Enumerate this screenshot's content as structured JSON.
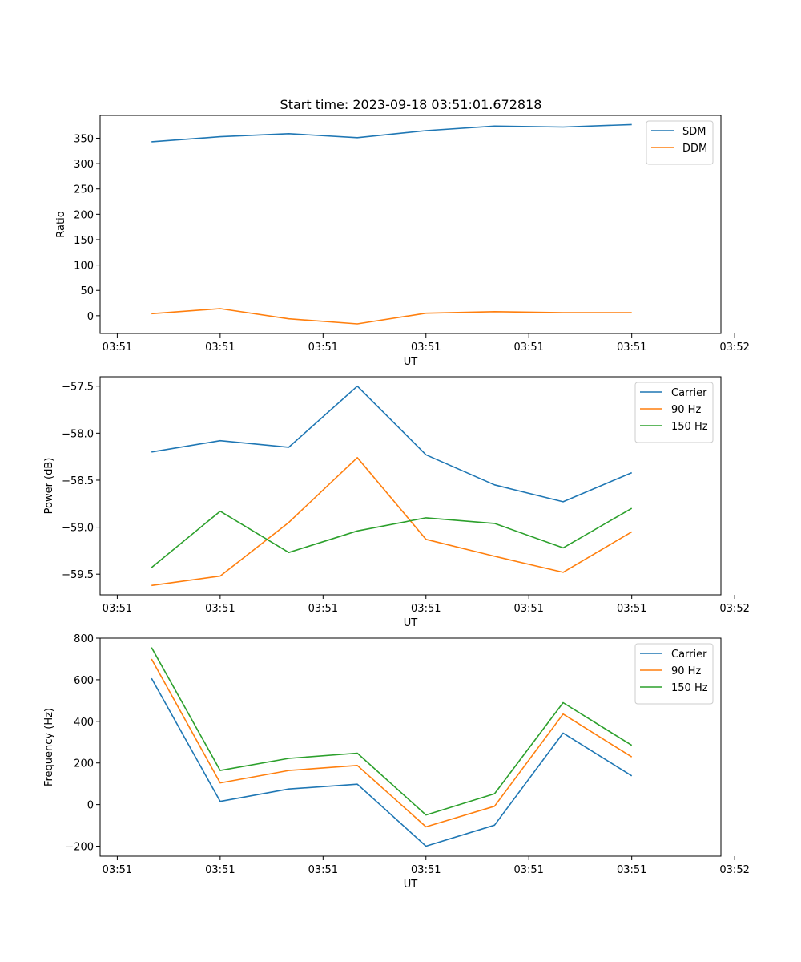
{
  "figure_title": "Start time: 2023-09-18 03:51:01.672818",
  "chart_data": [
    {
      "type": "line",
      "title": "Start time: 2023-09-18 03:51:01.672818",
      "xlabel": "UT",
      "ylabel": "Ratio",
      "xlim": [
        -0.75,
        8.3
      ],
      "ylim": [
        -35,
        395
      ],
      "x_ticks": [
        -0.5,
        1.0,
        2.5,
        4.0,
        5.5,
        7.0,
        8.5
      ],
      "x_tick_labels": [
        "03:51",
        "03:51",
        "03:51",
        "03:51",
        "03:51",
        "03:51",
        "03:52"
      ],
      "y_ticks": [
        0,
        50,
        100,
        150,
        200,
        250,
        300,
        350
      ],
      "y_tick_labels": [
        "0",
        "50",
        "100",
        "150",
        "200",
        "250",
        "300",
        "350"
      ],
      "x": [
        0,
        1,
        2,
        3,
        4,
        5,
        6,
        7
      ],
      "legend_position": "top-right",
      "series": [
        {
          "name": "SDM",
          "color": "#1f77b4",
          "values": [
            343,
            353,
            359,
            351,
            365,
            374,
            372,
            377
          ]
        },
        {
          "name": "DDM",
          "color": "#ff7f0e",
          "values": [
            4,
            14,
            -6,
            -16,
            5,
            8,
            6,
            6
          ]
        }
      ]
    },
    {
      "type": "line",
      "title": "",
      "xlabel": "UT",
      "ylabel": "Power (dB)",
      "xlim": [
        -0.75,
        8.3
      ],
      "ylim": [
        -59.72,
        -57.4
      ],
      "x_ticks": [
        -0.5,
        1.0,
        2.5,
        4.0,
        5.5,
        7.0,
        8.5
      ],
      "x_tick_labels": [
        "03:51",
        "03:51",
        "03:51",
        "03:51",
        "03:51",
        "03:51",
        "03:52"
      ],
      "y_ticks": [
        -59.5,
        -59.0,
        -58.5,
        -58.0,
        -57.5
      ],
      "y_tick_labels": [
        "−59.5",
        "−59.0",
        "−58.5",
        "−58.0",
        "−57.5"
      ],
      "x": [
        0,
        1,
        2,
        3,
        4,
        5,
        6,
        7
      ],
      "legend_position": "top-right",
      "series": [
        {
          "name": "Carrier",
          "color": "#1f77b4",
          "values": [
            -58.2,
            -58.08,
            -58.15,
            -57.5,
            -58.23,
            -58.55,
            -58.73,
            -58.42
          ]
        },
        {
          "name": "90 Hz",
          "color": "#ff7f0e",
          "values": [
            -59.62,
            -59.52,
            -58.95,
            -58.26,
            -59.13,
            -59.31,
            -59.48,
            -59.05
          ]
        },
        {
          "name": "150 Hz",
          "color": "#2ca02c",
          "values": [
            -59.43,
            -58.83,
            -59.27,
            -59.04,
            -58.9,
            -58.96,
            -59.22,
            -58.8
          ]
        }
      ]
    },
    {
      "type": "line",
      "title": "",
      "xlabel": "UT",
      "ylabel": "Frequency (Hz)",
      "xlim": [
        -0.75,
        8.3
      ],
      "ylim": [
        -248,
        800
      ],
      "x_ticks": [
        -0.5,
        1.0,
        2.5,
        4.0,
        5.5,
        7.0,
        8.5
      ],
      "x_tick_labels": [
        "03:51",
        "03:51",
        "03:51",
        "03:51",
        "03:51",
        "03:51",
        "03:52"
      ],
      "y_ticks": [
        -200,
        0,
        200,
        400,
        600,
        800
      ],
      "y_tick_labels": [
        "−200",
        "0",
        "200",
        "400",
        "600",
        "800"
      ],
      "x": [
        0,
        1,
        2,
        3,
        4,
        5,
        6,
        7
      ],
      "legend_position": "top-right",
      "series": [
        {
          "name": "Carrier",
          "color": "#1f77b4",
          "values": [
            607,
            15,
            75,
            98,
            -200,
            -99,
            344,
            138
          ]
        },
        {
          "name": "90 Hz",
          "color": "#ff7f0e",
          "values": [
            700,
            104,
            164,
            188,
            -107,
            -8,
            435,
            229
          ]
        },
        {
          "name": "150 Hz",
          "color": "#2ca02c",
          "values": [
            755,
            164,
            222,
            247,
            -50,
            52,
            490,
            285
          ]
        }
      ]
    }
  ]
}
